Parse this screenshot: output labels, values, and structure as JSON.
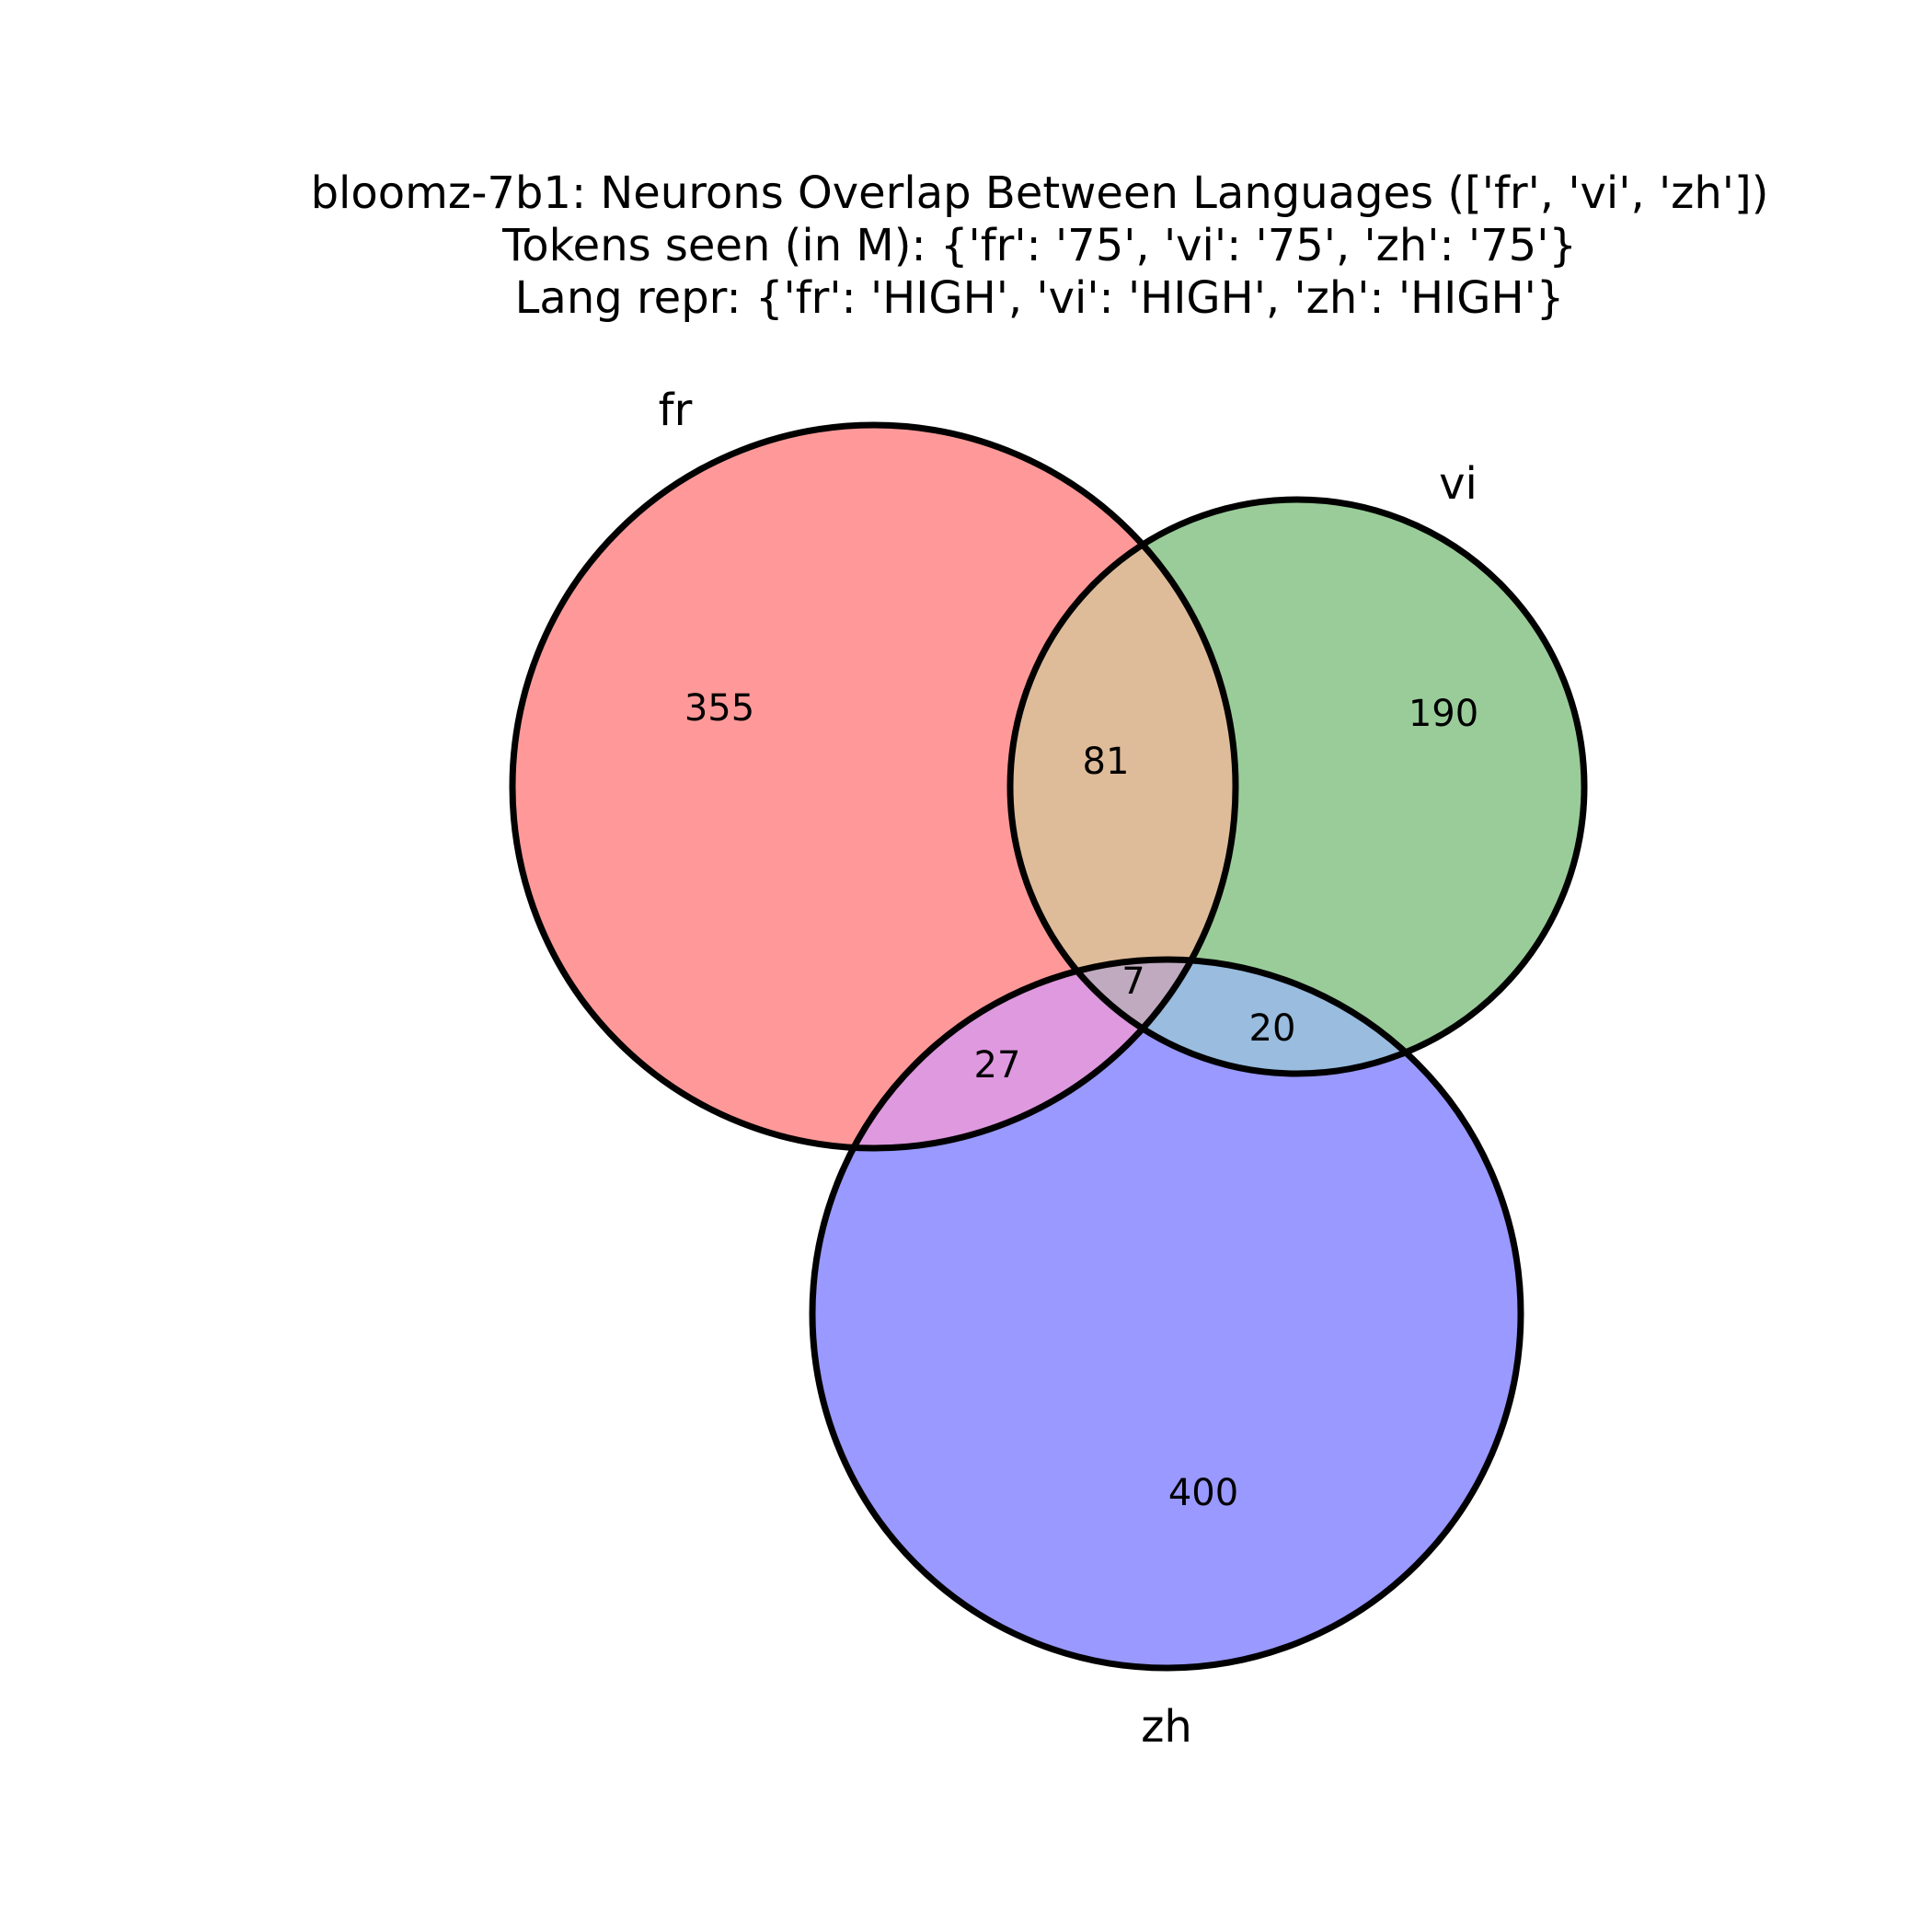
{
  "title": {
    "line1": "bloomz-7b1: Neurons Overlap Between Languages (['fr', 'vi', 'zh'])",
    "line2": "Tokens seen (in M): {'fr': '75', 'vi': '75', 'zh': '75'}",
    "line3": "Lang repr: {'fr': 'HIGH', 'vi': 'HIGH', 'zh': 'HIGH'}"
  },
  "sets": [
    {
      "id": "fr",
      "label": "fr",
      "color": "#ff9999"
    },
    {
      "id": "vi",
      "label": "vi",
      "color": "#99cc99"
    },
    {
      "id": "zh",
      "label": "zh",
      "color": "#9999ff"
    }
  ],
  "regions": {
    "fr_only": "355",
    "vi_only": "190",
    "zh_only": "400",
    "fr_vi": "81",
    "fr_zh": "27",
    "vi_zh": "20",
    "fr_vi_zh": "7"
  },
  "region_colors": {
    "fr_vi": "#dfbc99",
    "fr_zh": "#df99df",
    "vi_zh": "#99bcdf",
    "fr_vi_zh": "#c0aabf"
  }
}
